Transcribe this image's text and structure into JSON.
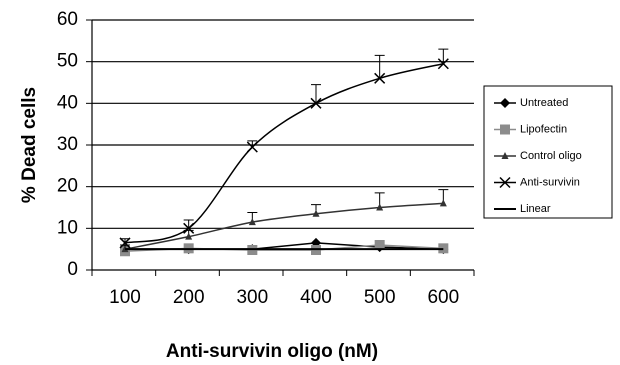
{
  "chart_data": {
    "type": "line",
    "x_label": "Anti-survivin oligo (nM)",
    "y_label": "% Dead cells",
    "categories": [
      "100",
      "200",
      "300",
      "400",
      "500",
      "600"
    ],
    "ylim": [
      0,
      60
    ],
    "yticks": [
      0,
      10,
      20,
      30,
      40,
      50,
      60
    ],
    "grid": true,
    "legend": "right",
    "series": [
      {
        "name": "Untreated",
        "color": "#000000",
        "marker": "diamond",
        "values": [
          5,
          5,
          5,
          6.5,
          5.5,
          5
        ]
      },
      {
        "name": "Lipofectin",
        "color": "#8c8c8c",
        "marker": "square",
        "values": [
          4.5,
          5.2,
          4.8,
          4.8,
          6,
          5.2
        ]
      },
      {
        "name": "Control oligo",
        "color": "#333333",
        "marker": "triangle",
        "smooth": true,
        "values": [
          5,
          8,
          11.5,
          13.5,
          15,
          16
        ],
        "errors": [
          1,
          1.5,
          2.3,
          2.2,
          3.5,
          3.3
        ]
      },
      {
        "name": "Anti-survivin",
        "color": "#000000",
        "marker": "x",
        "smooth": true,
        "values": [
          6.5,
          10,
          29.5,
          40,
          46,
          49.5
        ],
        "errors": [
          1,
          2,
          1.5,
          4.5,
          5.5,
          3.5
        ]
      },
      {
        "name": "Linear",
        "color": "#000000",
        "marker": "none",
        "values": [
          5,
          5,
          5,
          5,
          5,
          5
        ]
      }
    ]
  }
}
